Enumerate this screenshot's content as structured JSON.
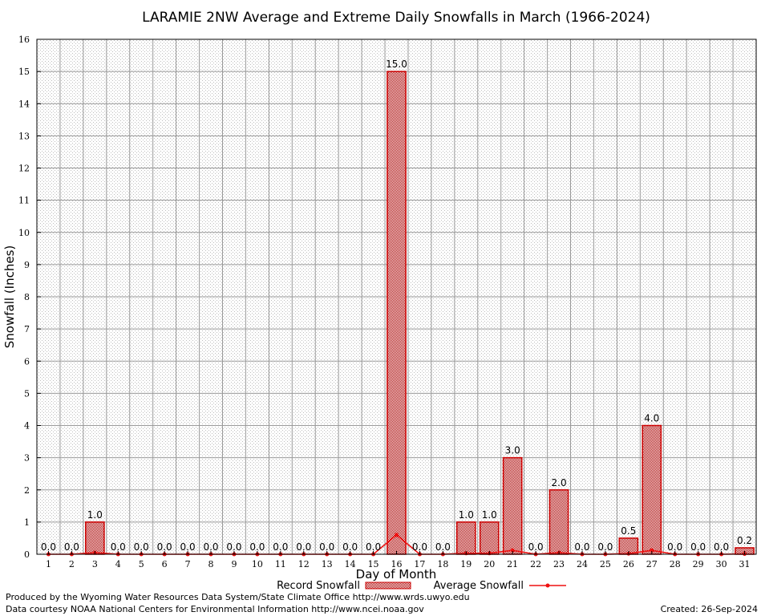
{
  "chart_data": {
    "type": "bar",
    "title": "LARAMIE 2NW Average and Extreme Daily Snowfalls in March (1966-2024)",
    "xlabel": "Day of Month",
    "ylabel": "Snowfall (Inches)",
    "ylim": [
      0,
      16
    ],
    "yticks": [
      "0",
      "1",
      "2",
      "3",
      "4",
      "5",
      "6",
      "7",
      "8",
      "9",
      "10",
      "11",
      "12",
      "13",
      "14",
      "15",
      "16"
    ],
    "categories": [
      "1",
      "2",
      "3",
      "4",
      "5",
      "6",
      "7",
      "8",
      "9",
      "10",
      "11",
      "12",
      "13",
      "14",
      "15",
      "16",
      "17",
      "18",
      "19",
      "20",
      "21",
      "22",
      "23",
      "24",
      "25",
      "26",
      "27",
      "28",
      "29",
      "30",
      "31"
    ],
    "grid": true,
    "legend_position": "bottom",
    "series": [
      {
        "name": "Record Snowfall",
        "kind": "bar",
        "color": "#cc0000",
        "values": [
          0,
          0,
          1,
          0,
          0,
          0,
          0,
          0,
          0,
          0,
          0,
          0,
          0,
          0,
          0,
          15,
          0,
          0,
          1,
          1,
          3,
          0,
          2,
          0,
          0,
          0.5,
          4,
          0,
          0,
          0,
          0.2
        ],
        "labels": [
          "0.0",
          "0.0",
          "1.0",
          "0.0",
          "0.0",
          "0.0",
          "0.0",
          "0.0",
          "0.0",
          "0.0",
          "0.0",
          "0.0",
          "0.0",
          "0.0",
          "0.0",
          "15.0",
          "0.0",
          "0.0",
          "1.0",
          "1.0",
          "3.0",
          "0.0",
          "2.0",
          "0.0",
          "0.0",
          "0.5",
          "4.0",
          "0.0",
          "0.0",
          "0.0",
          "0.2"
        ]
      },
      {
        "name": "Average Snowfall",
        "kind": "line",
        "color": "#ee1111",
        "values": [
          0,
          0,
          0.05,
          0,
          0,
          0,
          0,
          0,
          0,
          0,
          0,
          0,
          0,
          0,
          0,
          0.6,
          0,
          0,
          0.03,
          0.03,
          0.12,
          0,
          0.05,
          0,
          0,
          0.02,
          0.12,
          0,
          0,
          0,
          0.01
        ]
      }
    ]
  },
  "footer": {
    "produced_by": "Produced by the Wyoming Water Resources Data System/State Climate Office http://www.wrds.uwyo.edu",
    "data_courtesy": "Data courtesy NOAA National Centers for Environmental Information http://www.ncei.noaa.gov",
    "created": "Created: 26-Sep-2024"
  }
}
